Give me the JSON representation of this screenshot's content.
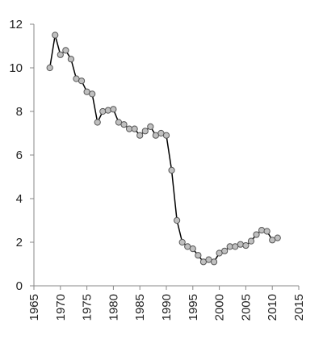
{
  "chart_data": {
    "type": "line",
    "x": [
      1968,
      1969,
      1970,
      1971,
      1972,
      1973,
      1974,
      1975,
      1976,
      1977,
      1978,
      1979,
      1980,
      1981,
      1982,
      1983,
      1984,
      1985,
      1986,
      1987,
      1988,
      1989,
      1990,
      1991,
      1992,
      1993,
      1994,
      1995,
      1996,
      1997,
      1998,
      1999,
      2000,
      2001,
      2002,
      2003,
      2004,
      2005,
      2006,
      2007,
      2008,
      2009,
      2010,
      2011
    ],
    "series": [
      {
        "color": "#000000",
        "marker_color": "#c0c0c0",
        "values": [
          10.0,
          11.5,
          10.6,
          10.8,
          10.4,
          9.5,
          9.4,
          8.9,
          8.8,
          7.5,
          8.0,
          8.05,
          8.1,
          7.5,
          7.4,
          7.2,
          7.2,
          6.9,
          7.1,
          7.3,
          6.9,
          7.0,
          6.9,
          5.3,
          3.0,
          2.0,
          1.8,
          1.7,
          1.4,
          1.1,
          1.2,
          1.1,
          1.5,
          1.6,
          1.8,
          1.8,
          1.9,
          1.85,
          2.05,
          2.35,
          2.55,
          2.5,
          2.1,
          2.2
        ]
      }
    ],
    "xlim": [
      1965,
      2015
    ],
    "xticks": [
      1965,
      1970,
      1975,
      1980,
      1985,
      1990,
      1995,
      2000,
      2005,
      2010,
      2015
    ],
    "ylim": [
      0,
      12
    ],
    "yticks": [
      0,
      2,
      4,
      6,
      8,
      10,
      12
    ],
    "grid": false
  }
}
